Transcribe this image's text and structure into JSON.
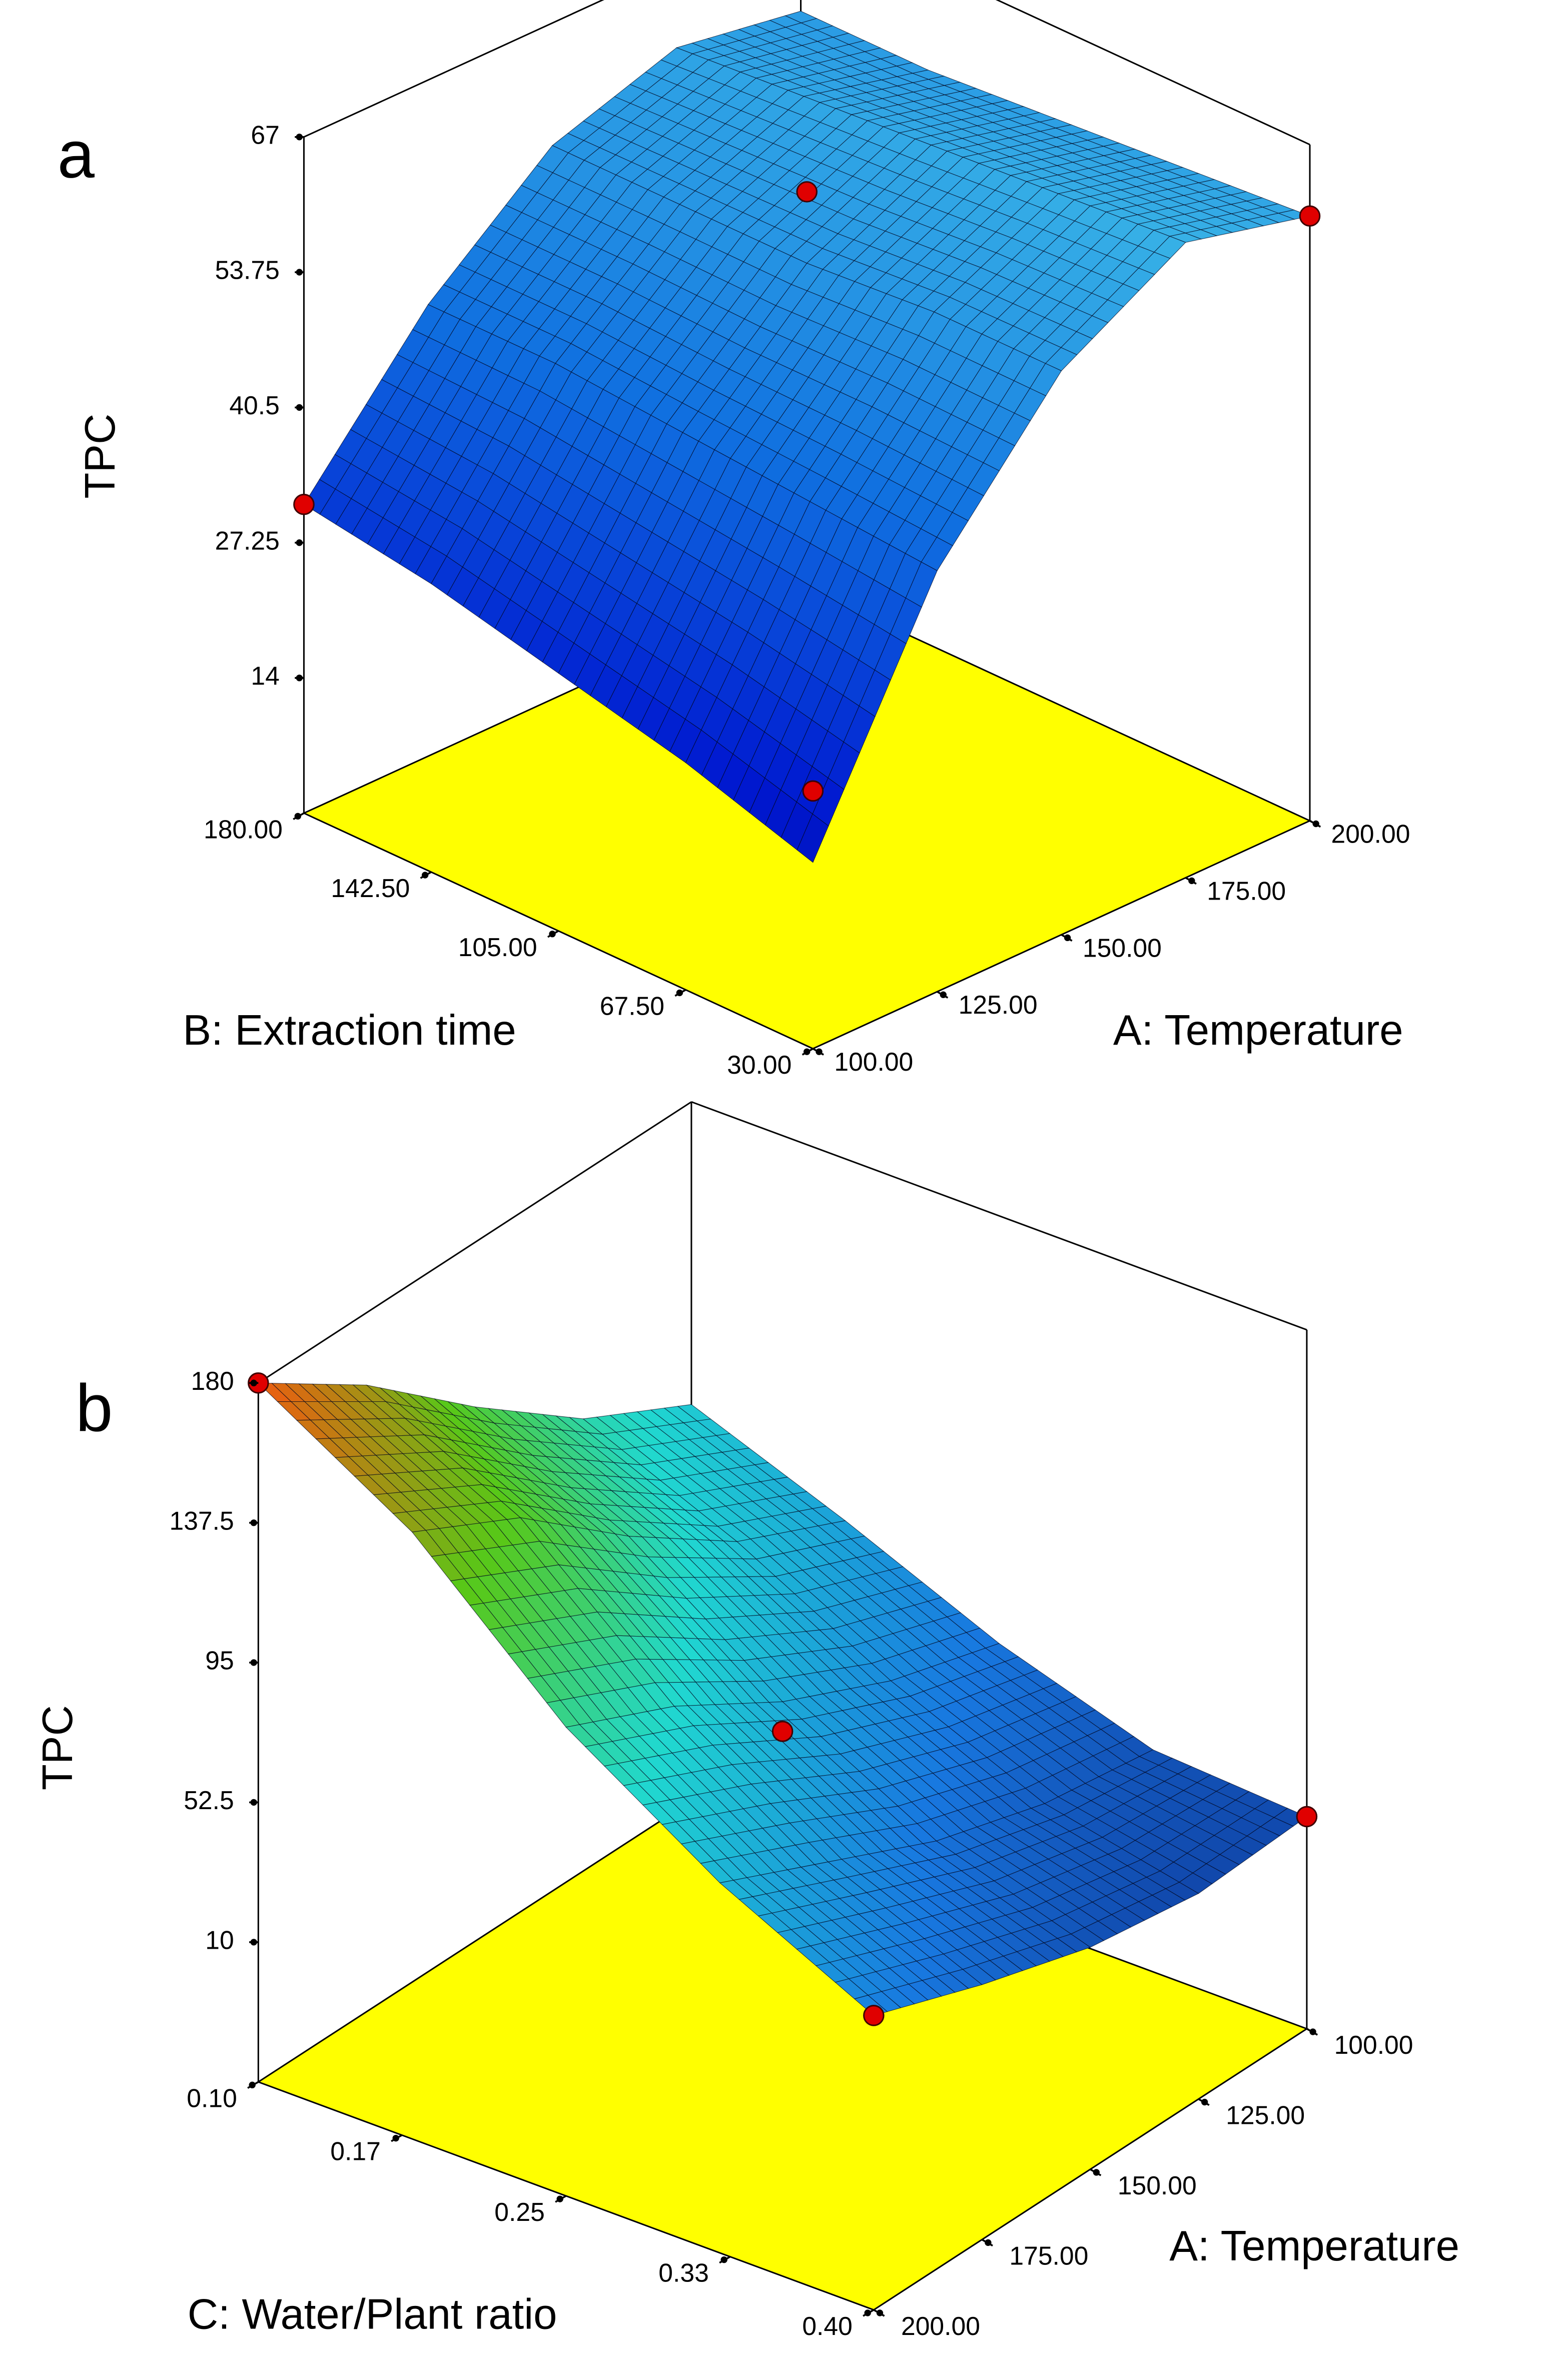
{
  "chart_data": [
    {
      "type": "surface",
      "panel_label": "a",
      "zlabel": "TPC",
      "xlabel": "A: Temperature",
      "ylabel": "B: Extraction time",
      "x": [
        100,
        125,
        150,
        175,
        200
      ],
      "y": [
        30,
        67.5,
        105,
        142.5,
        180
      ],
      "z": [
        [
          19,
          23,
          26,
          29,
          31
        ],
        [
          42,
          43,
          44,
          45,
          45
        ],
        [
          56,
          56,
          55,
          55,
          55
        ],
        [
          63,
          62,
          61,
          60,
          59
        ],
        [
          60,
          59,
          58,
          57,
          57
        ]
      ],
      "xlim": [
        100,
        200
      ],
      "ylim": [
        30,
        180
      ],
      "zlim": [
        0.75,
        67
      ],
      "xticks": [
        {
          "value": 100,
          "label": "100.00"
        },
        {
          "value": 125,
          "label": "125.00"
        },
        {
          "value": 150,
          "label": "150.00"
        },
        {
          "value": 175,
          "label": "175.00"
        },
        {
          "value": 200,
          "label": "200.00"
        }
      ],
      "yticks": [
        {
          "value": 30,
          "label": "30.00"
        },
        {
          "value": 67.5,
          "label": "67.50"
        },
        {
          "value": 105,
          "label": "105.00"
        },
        {
          "value": 142.5,
          "label": "142.50"
        },
        {
          "value": 180,
          "label": "180.00"
        }
      ],
      "zticks": [
        14,
        27.25,
        40.5,
        53.75,
        67
      ],
      "colorscale": [
        "#000080",
        "#0018d0",
        "#1070e0",
        "#40c0e8"
      ],
      "floor_color": "#ffff00",
      "point_color": "#e00000",
      "points": {
        "x": [
          100,
          200,
          150,
          100
        ],
        "y": [
          180,
          30,
          105,
          30
        ],
        "z": [
          31,
          60,
          62,
          26
        ]
      }
    },
    {
      "type": "surface",
      "panel_label": "b",
      "zlabel": "TPC",
      "xlabel": "A: Temperature",
      "ylabel": "C: Water/Plant ratio",
      "x": [
        100,
        125,
        150,
        175,
        200
      ],
      "y": [
        0.1,
        0.175,
        0.25,
        0.325,
        0.4
      ],
      "z": [
        [
          88,
          70,
          50,
          35,
          32
        ],
        [
          105,
          85,
          60,
          40,
          30
        ],
        [
          130,
          108,
          75,
          50,
          35
        ],
        [
          158,
          135,
          95,
          65,
          45
        ],
        [
          180,
          152,
          110,
          80,
          57
        ]
      ],
      "xlim": [
        100,
        200
      ],
      "ylim": [
        0.1,
        0.4
      ],
      "zlim": [
        -32.5,
        180
      ],
      "xticks": [
        {
          "value": 100,
          "label": "100.00"
        },
        {
          "value": 125,
          "label": "125.00"
        },
        {
          "value": 150,
          "label": "150.00"
        },
        {
          "value": 175,
          "label": "175.00"
        },
        {
          "value": 200,
          "label": "200.00"
        }
      ],
      "yticks": [
        {
          "value": 0.1,
          "label": "0.10"
        },
        0.17,
        0.25,
        0.33,
        {
          "value": 0.4,
          "label": "0.40"
        }
      ],
      "zticks": [
        10,
        52.5,
        95,
        137.5,
        180
      ],
      "colorscale": [
        "#000010",
        "#0a1a7a",
        "#1878e0",
        "#20d8d0",
        "#58c818",
        "#f05a10"
      ],
      "floor_color": "#ffff00",
      "point_color": "#e00000",
      "points": {
        "x": [
          200,
          150,
          100,
          200
        ],
        "y": [
          0.1,
          0.25,
          0.4,
          0.4
        ],
        "z": [
          180,
          66,
          32,
          57
        ]
      }
    }
  ]
}
